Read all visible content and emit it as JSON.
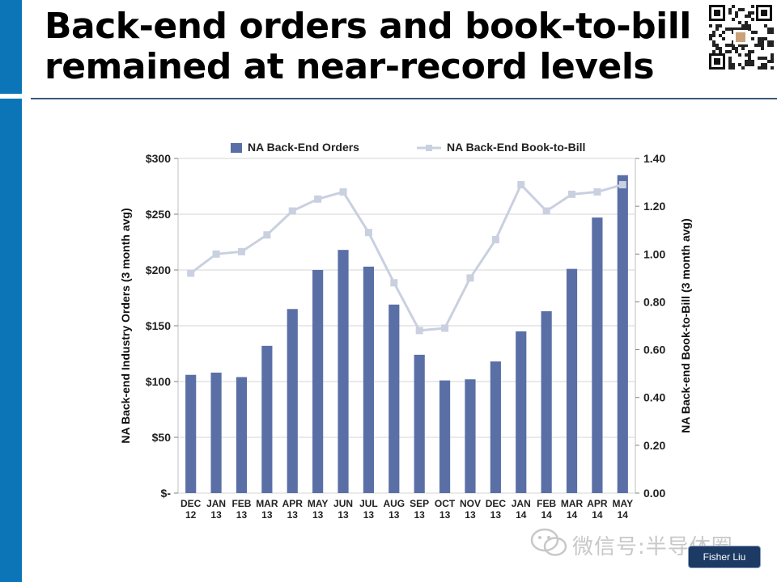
{
  "slide": {
    "title_line1": "Back-end orders and book-to-bill",
    "title_line2": "remained at near-record levels",
    "watermark": "微信号:半导体圈",
    "name_tag": "Fisher Liu"
  },
  "colors": {
    "accent": "#0b75b8",
    "bar": "#5a6fa6",
    "line": "#c9d0e0"
  },
  "chart_data": {
    "type": "bar",
    "categories": [
      "DEC 12",
      "JAN 13",
      "FEB 13",
      "MAR 13",
      "APR 13",
      "MAY 13",
      "JUN 13",
      "JUL 13",
      "AUG 13",
      "SEP 13",
      "OCT 13",
      "NOV 13",
      "DEC 13",
      "JAN 14",
      "FEB 14",
      "MAR 14",
      "APR 14",
      "MAY 14"
    ],
    "category_lines": [
      [
        "DEC",
        "12"
      ],
      [
        "JAN",
        "13"
      ],
      [
        "FEB",
        "13"
      ],
      [
        "MAR",
        "13"
      ],
      [
        "APR",
        "13"
      ],
      [
        "MAY",
        "13"
      ],
      [
        "JUN",
        "13"
      ],
      [
        "JUL",
        "13"
      ],
      [
        "AUG",
        "13"
      ],
      [
        "SEP",
        "13"
      ],
      [
        "OCT",
        "13"
      ],
      [
        "NOV",
        "13"
      ],
      [
        "DEC",
        "13"
      ],
      [
        "JAN",
        "14"
      ],
      [
        "FEB",
        "14"
      ],
      [
        "MAR",
        "14"
      ],
      [
        "APR",
        "14"
      ],
      [
        "MAY",
        "14"
      ]
    ],
    "series": [
      {
        "name": "NA Back-End Orders",
        "type": "bar",
        "axis": "left",
        "values": [
          106,
          108,
          104,
          132,
          165,
          200,
          218,
          203,
          169,
          124,
          101,
          102,
          118,
          145,
          163,
          201,
          247,
          285
        ]
      },
      {
        "name": "NA Back-End Book-to-Bill",
        "type": "line",
        "axis": "right",
        "values": [
          0.92,
          1.0,
          1.01,
          1.08,
          1.18,
          1.23,
          1.26,
          1.09,
          0.88,
          0.68,
          0.69,
          0.9,
          1.06,
          1.29,
          1.18,
          1.25,
          1.26,
          1.29
        ]
      }
    ],
    "ylabel_left": "NA Back-end Industry Orders (3 month avg)",
    "ylabel_right": "NA Back-end Book-to-Bill (3 month avg)",
    "ylim_left": [
      0,
      300
    ],
    "ylim_right": [
      0,
      1.4
    ],
    "yticks_left": [
      "$-",
      "$50",
      "$100",
      "$150",
      "$200",
      "$250",
      "$300"
    ],
    "yticks_right": [
      "0.00",
      "0.20",
      "0.40",
      "0.60",
      "0.80",
      "1.00",
      "1.20",
      "1.40"
    ],
    "grid": "horizontal",
    "legend_position": "top"
  }
}
